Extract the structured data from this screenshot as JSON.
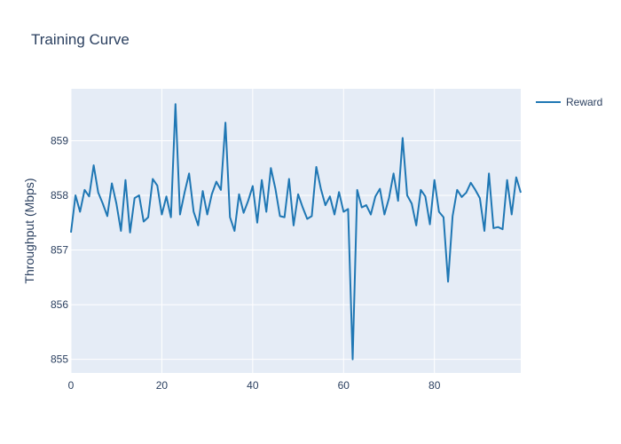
{
  "chart_data": {
    "type": "line",
    "title": "Training Curve",
    "xlabel": "",
    "ylabel": "Throughput (Mbps)",
    "xlim": [
      0,
      99
    ],
    "ylim": [
      854.75,
      859.95
    ],
    "x_ticks": [
      0,
      20,
      40,
      60,
      80
    ],
    "y_ticks": [
      855,
      856,
      857,
      858,
      859
    ],
    "grid": true,
    "legend_position": "top-right",
    "colors": {
      "plot_background": "#e5ecf6",
      "grid": "#ffffff",
      "series": "#1f77b4",
      "text": "#2a3f5f"
    },
    "series": [
      {
        "name": "Reward",
        "x": [
          0,
          1,
          2,
          3,
          4,
          5,
          6,
          7,
          8,
          9,
          10,
          11,
          12,
          13,
          14,
          15,
          16,
          17,
          18,
          19,
          20,
          21,
          22,
          23,
          24,
          25,
          26,
          27,
          28,
          29,
          30,
          31,
          32,
          33,
          34,
          35,
          36,
          37,
          38,
          39,
          40,
          41,
          42,
          43,
          44,
          45,
          46,
          47,
          48,
          49,
          50,
          51,
          52,
          53,
          54,
          55,
          56,
          57,
          58,
          59,
          60,
          61,
          62,
          63,
          64,
          65,
          66,
          67,
          68,
          69,
          70,
          71,
          72,
          73,
          74,
          75,
          76,
          77,
          78,
          79,
          80,
          81,
          82,
          83,
          84,
          85,
          86,
          87,
          88,
          89,
          90,
          91,
          92,
          93,
          94,
          95,
          96,
          97,
          98,
          99
        ],
        "values": [
          857.32,
          858.0,
          857.7,
          858.1,
          857.98,
          858.55,
          858.05,
          857.85,
          857.62,
          858.22,
          857.85,
          857.35,
          858.28,
          857.32,
          857.95,
          858.0,
          857.52,
          857.6,
          858.3,
          858.18,
          857.65,
          857.98,
          857.6,
          859.67,
          857.65,
          858.05,
          858.4,
          857.7,
          857.45,
          858.08,
          857.65,
          858.02,
          858.25,
          858.1,
          859.33,
          857.6,
          857.35,
          858.02,
          857.68,
          857.9,
          858.17,
          857.5,
          858.28,
          857.7,
          858.5,
          858.12,
          857.62,
          857.6,
          858.3,
          857.45,
          858.02,
          857.78,
          857.57,
          857.62,
          858.52,
          858.12,
          857.82,
          857.98,
          857.65,
          858.06,
          857.7,
          857.75,
          855.0,
          858.1,
          857.78,
          857.82,
          857.65,
          857.98,
          858.12,
          857.65,
          857.95,
          858.4,
          857.9,
          859.05,
          858.0,
          857.85,
          857.45,
          858.1,
          857.98,
          857.47,
          858.28,
          857.7,
          857.6,
          856.42,
          857.62,
          858.1,
          857.97,
          858.05,
          858.23,
          858.1,
          857.95,
          857.35,
          858.4,
          857.4,
          857.42,
          857.38,
          858.28,
          857.65,
          858.33,
          858.05
        ]
      }
    ]
  }
}
